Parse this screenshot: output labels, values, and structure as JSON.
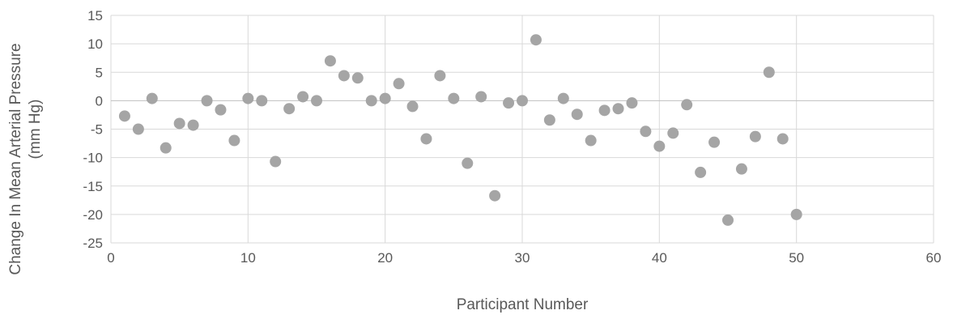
{
  "chart_data": {
    "type": "scatter",
    "title": "",
    "xlabel": "Participant Number",
    "ylabel_lines": [
      "Change In Mean Arterial Pressure",
      "(mm Hg)"
    ],
    "xlim": [
      0,
      60
    ],
    "ylim": [
      -25,
      15
    ],
    "xticks": [
      0,
      10,
      20,
      30,
      40,
      50,
      60
    ],
    "yticks": [
      15,
      10,
      5,
      0,
      -5,
      -10,
      -15,
      -20,
      -25
    ],
    "grid": true,
    "legend": "none",
    "marker_color": "#a5a5a5",
    "series": [
      {
        "x": [
          1,
          2,
          3,
          4,
          5,
          6,
          7,
          8,
          9,
          10,
          11,
          12,
          13,
          14,
          15,
          16,
          17,
          18,
          19,
          20,
          21,
          22,
          23,
          24,
          25,
          26,
          27,
          28,
          29,
          30,
          31,
          32,
          33,
          34,
          35,
          36,
          37,
          38,
          39,
          40,
          41,
          42,
          43,
          44,
          45,
          46,
          47,
          48,
          49,
          50
        ],
        "y": [
          -2.7,
          -5,
          0.4,
          -8.3,
          -4,
          -4.3,
          0,
          -1.6,
          -7,
          0.4,
          0,
          -10.7,
          -1.4,
          0.7,
          0,
          7,
          4.4,
          4,
          0,
          0.4,
          3,
          -1,
          -6.7,
          4.4,
          0.4,
          -11,
          0.7,
          -16.7,
          -0.4,
          0,
          10.7,
          -3.4,
          0.4,
          -2.4,
          -7,
          -1.7,
          -1.4,
          -0.4,
          -5.4,
          -8,
          -5.7,
          -0.7,
          -12.6,
          -7.3,
          -21,
          -12,
          -6.3,
          5,
          -6.7,
          -20
        ]
      }
    ]
  }
}
